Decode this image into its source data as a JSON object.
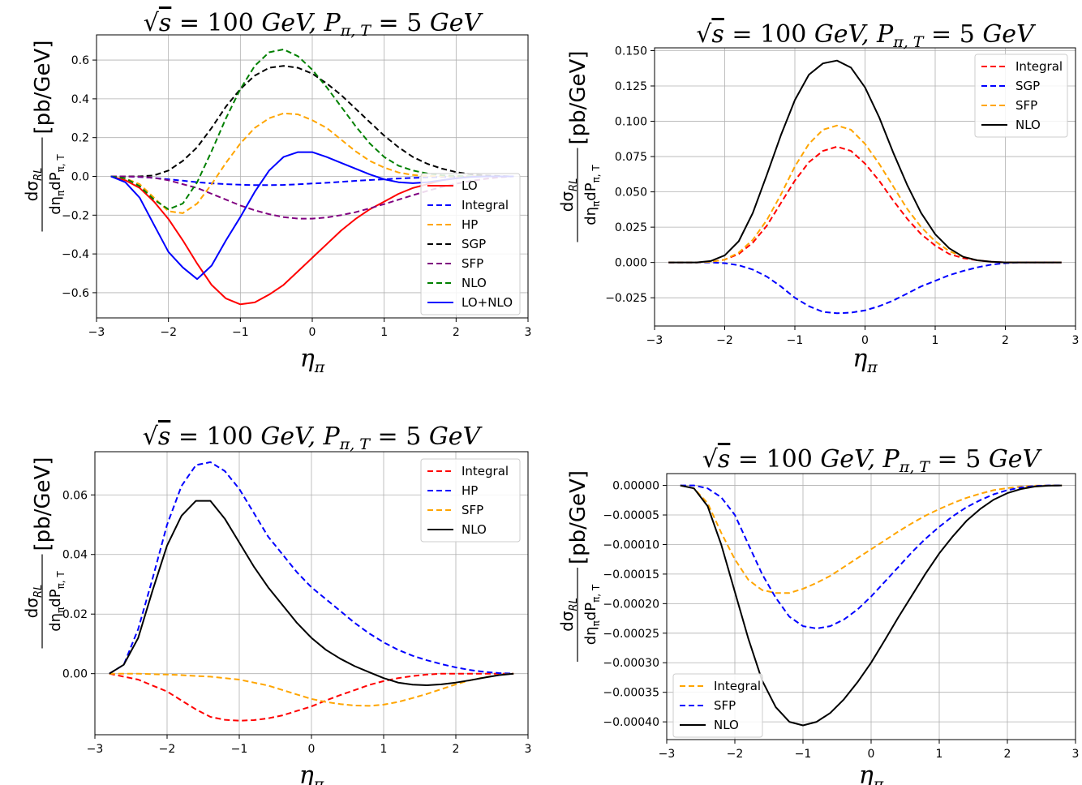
{
  "chart_data": [
    {
      "type": "line",
      "title": "√s = 100 GeV, P_π,T = 5 GeV",
      "xlabel": "η_π",
      "ylabel": "dσ_RL / dη_π dP_π,T [pb/GeV]",
      "xlim": [
        -3.0,
        3.0
      ],
      "ylim": [
        -0.73,
        0.73
      ],
      "xticks": [
        "−3",
        "−2",
        "−1",
        "0",
        "1",
        "2",
        "3"
      ],
      "yticks": [
        "−0.6",
        "−0.4",
        "−0.2",
        "0.0",
        "0.2",
        "0.4",
        "0.6"
      ],
      "grid": true,
      "legend_position": "lower-right",
      "x": [
        -2.8,
        -2.6,
        -2.4,
        -2.2,
        -2.0,
        -1.8,
        -1.6,
        -1.4,
        -1.2,
        -1.0,
        -0.8,
        -0.6,
        -0.4,
        -0.2,
        0.0,
        0.2,
        0.4,
        0.6,
        0.8,
        1.0,
        1.2,
        1.4,
        1.6,
        1.8,
        2.0,
        2.2,
        2.4,
        2.6,
        2.8
      ],
      "series": [
        {
          "name": "LO",
          "color": "#ff0000",
          "dash": false,
          "values": [
            0.0,
            -0.02,
            -0.06,
            -0.13,
            -0.22,
            -0.33,
            -0.45,
            -0.56,
            -0.63,
            -0.66,
            -0.65,
            -0.61,
            -0.56,
            -0.49,
            -0.42,
            -0.35,
            -0.28,
            -0.22,
            -0.17,
            -0.13,
            -0.09,
            -0.06,
            -0.04,
            -0.02,
            -0.01,
            0.0,
            0.0,
            0.0,
            0.0
          ]
        },
        {
          "name": "Integral",
          "color": "#0000ff",
          "dash": true,
          "values": [
            0.0,
            0.0,
            -0.003,
            -0.008,
            -0.015,
            -0.022,
            -0.03,
            -0.036,
            -0.04,
            -0.043,
            -0.045,
            -0.045,
            -0.044,
            -0.041,
            -0.037,
            -0.033,
            -0.028,
            -0.023,
            -0.019,
            -0.015,
            -0.011,
            -0.008,
            -0.005,
            -0.003,
            -0.002,
            -0.001,
            0.0,
            0.0,
            0.0
          ]
        },
        {
          "name": "HP",
          "color": "#ffa500",
          "dash": true,
          "values": [
            0.0,
            -0.01,
            -0.04,
            -0.11,
            -0.18,
            -0.19,
            -0.14,
            -0.04,
            0.07,
            0.17,
            0.25,
            0.3,
            0.325,
            0.32,
            0.29,
            0.25,
            0.19,
            0.13,
            0.08,
            0.045,
            0.02,
            0.007,
            0.002,
            0.0,
            0.0,
            0.0,
            0.0,
            0.0,
            0.0
          ]
        },
        {
          "name": "SGP",
          "color": "#000000",
          "dash": true,
          "values": [
            0.0,
            0.0,
            0.0,
            0.005,
            0.03,
            0.08,
            0.15,
            0.25,
            0.36,
            0.45,
            0.52,
            0.56,
            0.57,
            0.56,
            0.53,
            0.48,
            0.42,
            0.35,
            0.28,
            0.21,
            0.15,
            0.1,
            0.065,
            0.04,
            0.022,
            0.011,
            0.005,
            0.002,
            0.0
          ]
        },
        {
          "name": "SFP",
          "color": "#800080",
          "dash": true,
          "values": [
            0.0,
            0.0,
            -0.002,
            -0.008,
            -0.02,
            -0.04,
            -0.06,
            -0.09,
            -0.12,
            -0.15,
            -0.175,
            -0.195,
            -0.21,
            -0.218,
            -0.218,
            -0.212,
            -0.2,
            -0.185,
            -0.165,
            -0.143,
            -0.12,
            -0.097,
            -0.075,
            -0.055,
            -0.038,
            -0.024,
            -0.013,
            -0.005,
            0.0
          ]
        },
        {
          "name": "NLO",
          "color": "#008000",
          "dash": true,
          "values": [
            0.0,
            -0.01,
            -0.05,
            -0.12,
            -0.17,
            -0.14,
            -0.03,
            0.13,
            0.3,
            0.45,
            0.57,
            0.64,
            0.655,
            0.62,
            0.55,
            0.46,
            0.36,
            0.26,
            0.17,
            0.1,
            0.055,
            0.03,
            0.015,
            0.006,
            0.002,
            0.0,
            0.0,
            0.0,
            0.0
          ]
        },
        {
          "name": "LO+NLO",
          "color": "#0000ff",
          "dash": false,
          "values": [
            0.0,
            -0.03,
            -0.11,
            -0.25,
            -0.39,
            -0.47,
            -0.53,
            -0.46,
            -0.33,
            -0.21,
            -0.08,
            0.03,
            0.1,
            0.125,
            0.125,
            0.1,
            0.07,
            0.04,
            0.01,
            -0.015,
            -0.03,
            -0.035,
            -0.03,
            -0.02,
            -0.01,
            -0.003,
            0.0,
            0.0,
            0.0
          ]
        }
      ]
    },
    {
      "type": "line",
      "title": "√s = 100 GeV, P_π,T = 5 GeV",
      "xlabel": "η_π",
      "ylabel": "dσ_RL / dη_π dP_π,T [pb/GeV]",
      "xlim": [
        -3.0,
        3.0
      ],
      "ylim": [
        -0.045,
        0.152
      ],
      "xticks": [
        "−3",
        "−2",
        "−1",
        "0",
        "1",
        "2",
        "3"
      ],
      "yticks": [
        "−0.025",
        "0.000",
        "0.025",
        "0.050",
        "0.075",
        "0.100",
        "0.125",
        "0.150"
      ],
      "grid": true,
      "legend_position": "top-right",
      "x": [
        -2.8,
        -2.6,
        -2.4,
        -2.2,
        -2.0,
        -1.8,
        -1.6,
        -1.4,
        -1.2,
        -1.0,
        -0.8,
        -0.6,
        -0.4,
        -0.2,
        0.0,
        0.2,
        0.4,
        0.6,
        0.8,
        1.0,
        1.2,
        1.4,
        1.6,
        1.8,
        2.0,
        2.2,
        2.4,
        2.6,
        2.8
      ],
      "series": [
        {
          "name": "Integral",
          "color": "#ff0000",
          "dash": true,
          "values": [
            0.0,
            0.0,
            0.0,
            0.0005,
            0.002,
            0.006,
            0.014,
            0.026,
            0.042,
            0.058,
            0.071,
            0.079,
            0.082,
            0.079,
            0.07,
            0.058,
            0.044,
            0.031,
            0.02,
            0.012,
            0.006,
            0.003,
            0.0015,
            0.0005,
            0.0,
            0.0,
            0.0,
            0.0,
            0.0
          ]
        },
        {
          "name": "SGP",
          "color": "#0000ff",
          "dash": true,
          "values": [
            0.0,
            0.0,
            0.0,
            0.0,
            -0.0005,
            -0.002,
            -0.005,
            -0.01,
            -0.017,
            -0.025,
            -0.031,
            -0.035,
            -0.036,
            -0.0355,
            -0.034,
            -0.031,
            -0.027,
            -0.022,
            -0.017,
            -0.013,
            -0.009,
            -0.006,
            -0.0035,
            -0.0015,
            -0.0005,
            0.0,
            0.0,
            0.0,
            0.0
          ]
        },
        {
          "name": "SFP",
          "color": "#ffa500",
          "dash": true,
          "values": [
            0.0,
            0.0,
            0.0,
            0.0005,
            0.002,
            0.007,
            0.016,
            0.03,
            0.048,
            0.068,
            0.084,
            0.094,
            0.097,
            0.094,
            0.084,
            0.07,
            0.054,
            0.038,
            0.025,
            0.015,
            0.008,
            0.004,
            0.0015,
            0.0005,
            0.0,
            0.0,
            0.0,
            0.0,
            0.0
          ]
        },
        {
          "name": "NLO",
          "color": "#000000",
          "dash": false,
          "values": [
            0.0,
            0.0,
            0.0,
            0.001,
            0.005,
            0.015,
            0.035,
            0.062,
            0.09,
            0.115,
            0.133,
            0.141,
            0.143,
            0.138,
            0.124,
            0.103,
            0.078,
            0.055,
            0.035,
            0.02,
            0.01,
            0.004,
            0.0015,
            0.0005,
            0.0,
            0.0,
            0.0,
            0.0,
            0.0
          ]
        }
      ]
    },
    {
      "type": "line",
      "title": "√s = 100 GeV, P_π,T = 5 GeV",
      "xlabel": "η_π",
      "ylabel": "dσ_RL / dη_π dP_π,T [pb/GeV]",
      "xlim": [
        -3.0,
        3.0
      ],
      "ylim": [
        -0.0205,
        0.0745
      ],
      "xticks": [
        "−3",
        "−2",
        "−1",
        "0",
        "1",
        "2",
        "3"
      ],
      "yticks": [
        "0.00",
        "0.02",
        "0.04",
        "0.06"
      ],
      "grid": true,
      "legend_position": "top-right",
      "x": [
        -2.8,
        -2.6,
        -2.4,
        -2.2,
        -2.0,
        -1.8,
        -1.6,
        -1.4,
        -1.2,
        -1.0,
        -0.8,
        -0.6,
        -0.4,
        -0.2,
        0.0,
        0.2,
        0.4,
        0.6,
        0.8,
        1.0,
        1.2,
        1.4,
        1.6,
        1.8,
        2.0,
        2.2,
        2.4,
        2.6,
        2.8
      ],
      "series": [
        {
          "name": "Integral",
          "color": "#ff0000",
          "dash": true,
          "values": [
            0.0,
            -0.001,
            -0.002,
            -0.004,
            -0.006,
            -0.009,
            -0.012,
            -0.0145,
            -0.0155,
            -0.0158,
            -0.0156,
            -0.015,
            -0.014,
            -0.0125,
            -0.011,
            -0.009,
            -0.0072,
            -0.0055,
            -0.0038,
            -0.0025,
            -0.0015,
            -0.0008,
            -0.0003,
            0.0,
            0.0,
            0.0,
            0.0,
            0.0,
            0.0
          ]
        },
        {
          "name": "HP",
          "color": "#0000ff",
          "dash": true,
          "values": [
            0.0,
            0.003,
            0.015,
            0.032,
            0.05,
            0.063,
            0.07,
            0.071,
            0.068,
            0.062,
            0.054,
            0.046,
            0.04,
            0.034,
            0.029,
            0.025,
            0.021,
            0.017,
            0.0135,
            0.0105,
            0.008,
            0.006,
            0.0045,
            0.0032,
            0.0021,
            0.0012,
            0.0006,
            0.0002,
            0.0
          ]
        },
        {
          "name": "SFP",
          "color": "#ffa500",
          "dash": true,
          "values": [
            0.0,
            0.0,
            0.0,
            -0.0002,
            -0.0003,
            -0.0005,
            -0.0008,
            -0.001,
            -0.0015,
            -0.002,
            -0.003,
            -0.004,
            -0.0055,
            -0.007,
            -0.0085,
            -0.0095,
            -0.0102,
            -0.0107,
            -0.0108,
            -0.0104,
            -0.0095,
            -0.0082,
            -0.0068,
            -0.0052,
            -0.0036,
            -0.0022,
            -0.0012,
            -0.0004,
            0.0
          ]
        },
        {
          "name": "NLO",
          "color": "#000000",
          "dash": false,
          "values": [
            0.0,
            0.003,
            0.012,
            0.028,
            0.043,
            0.053,
            0.058,
            0.058,
            0.052,
            0.044,
            0.036,
            0.029,
            0.023,
            0.017,
            0.012,
            0.008,
            0.005,
            0.0025,
            0.0005,
            -0.0015,
            -0.003,
            -0.0037,
            -0.0039,
            -0.0036,
            -0.003,
            -0.0022,
            -0.0013,
            -0.0005,
            0.0
          ]
        }
      ]
    },
    {
      "type": "line",
      "title": "√s = 100 GeV, P_π,T = 5 GeV",
      "xlabel": "η_π",
      "ylabel": "dσ_RL / dη_π dP_π,T [pb/GeV]",
      "xlim": [
        -3.0,
        3.0
      ],
      "ylim": [
        -0.00043,
        2e-05
      ],
      "xticks": [
        "−3",
        "−2",
        "−1",
        "0",
        "1",
        "2",
        "3"
      ],
      "yticks": [
        "−0.00040",
        "−0.00035",
        "−0.00030",
        "−0.00025",
        "−0.00020",
        "−0.00015",
        "−0.00010",
        "−0.00005",
        "0.00000"
      ],
      "grid": true,
      "legend_position": "bottom-left",
      "x": [
        -2.8,
        -2.6,
        -2.4,
        -2.2,
        -2.0,
        -1.8,
        -1.6,
        -1.4,
        -1.2,
        -1.0,
        -0.8,
        -0.6,
        -0.4,
        -0.2,
        0.0,
        0.2,
        0.4,
        0.6,
        0.8,
        1.0,
        1.2,
        1.4,
        1.6,
        1.8,
        2.0,
        2.2,
        2.4,
        2.6,
        2.8
      ],
      "series": [
        {
          "name": "Integral",
          "color": "#ffa500",
          "dash": true,
          "values": [
            0.0,
            -5e-06,
            -3e-05,
            -8e-05,
            -0.000125,
            -0.00016,
            -0.000177,
            -0.000182,
            -0.000182,
            -0.000175,
            -0.000165,
            -0.000153,
            -0.000138,
            -0.000123,
            -0.000108,
            -9.3e-05,
            -7.8e-05,
            -6.4e-05,
            -5.1e-05,
            -4e-05,
            -3e-05,
            -2.1e-05,
            -1.4e-05,
            -8e-06,
            -4.5e-06,
            -2e-06,
            -5e-07,
            0.0,
            0.0
          ]
        },
        {
          "name": "SFP",
          "color": "#0000ff",
          "dash": true,
          "values": [
            0.0,
            0.0,
            -5e-06,
            -2e-05,
            -5e-05,
            -0.0001,
            -0.00015,
            -0.00019,
            -0.000222,
            -0.000238,
            -0.000242,
            -0.000238,
            -0.000227,
            -0.00021,
            -0.000188,
            -0.000163,
            -0.000138,
            -0.000113,
            -9e-05,
            -7e-05,
            -5.2e-05,
            -3.7e-05,
            -2.5e-05,
            -1.5e-05,
            -8e-06,
            -3.5e-06,
            -1e-06,
            0.0,
            0.0
          ]
        },
        {
          "name": "NLO",
          "color": "#000000",
          "dash": false,
          "values": [
            0.0,
            -5e-06,
            -3.5e-05,
            -0.0001,
            -0.00018,
            -0.00026,
            -0.00033,
            -0.000375,
            -0.0004,
            -0.000406,
            -0.0004,
            -0.000385,
            -0.000362,
            -0.000333,
            -0.0003,
            -0.000262,
            -0.000223,
            -0.000186,
            -0.000149,
            -0.000115,
            -8.6e-05,
            -6e-05,
            -4e-05,
            -2.4e-05,
            -1.3e-05,
            -6e-06,
            -2e-06,
            -5e-07,
            0.0
          ]
        }
      ]
    }
  ]
}
